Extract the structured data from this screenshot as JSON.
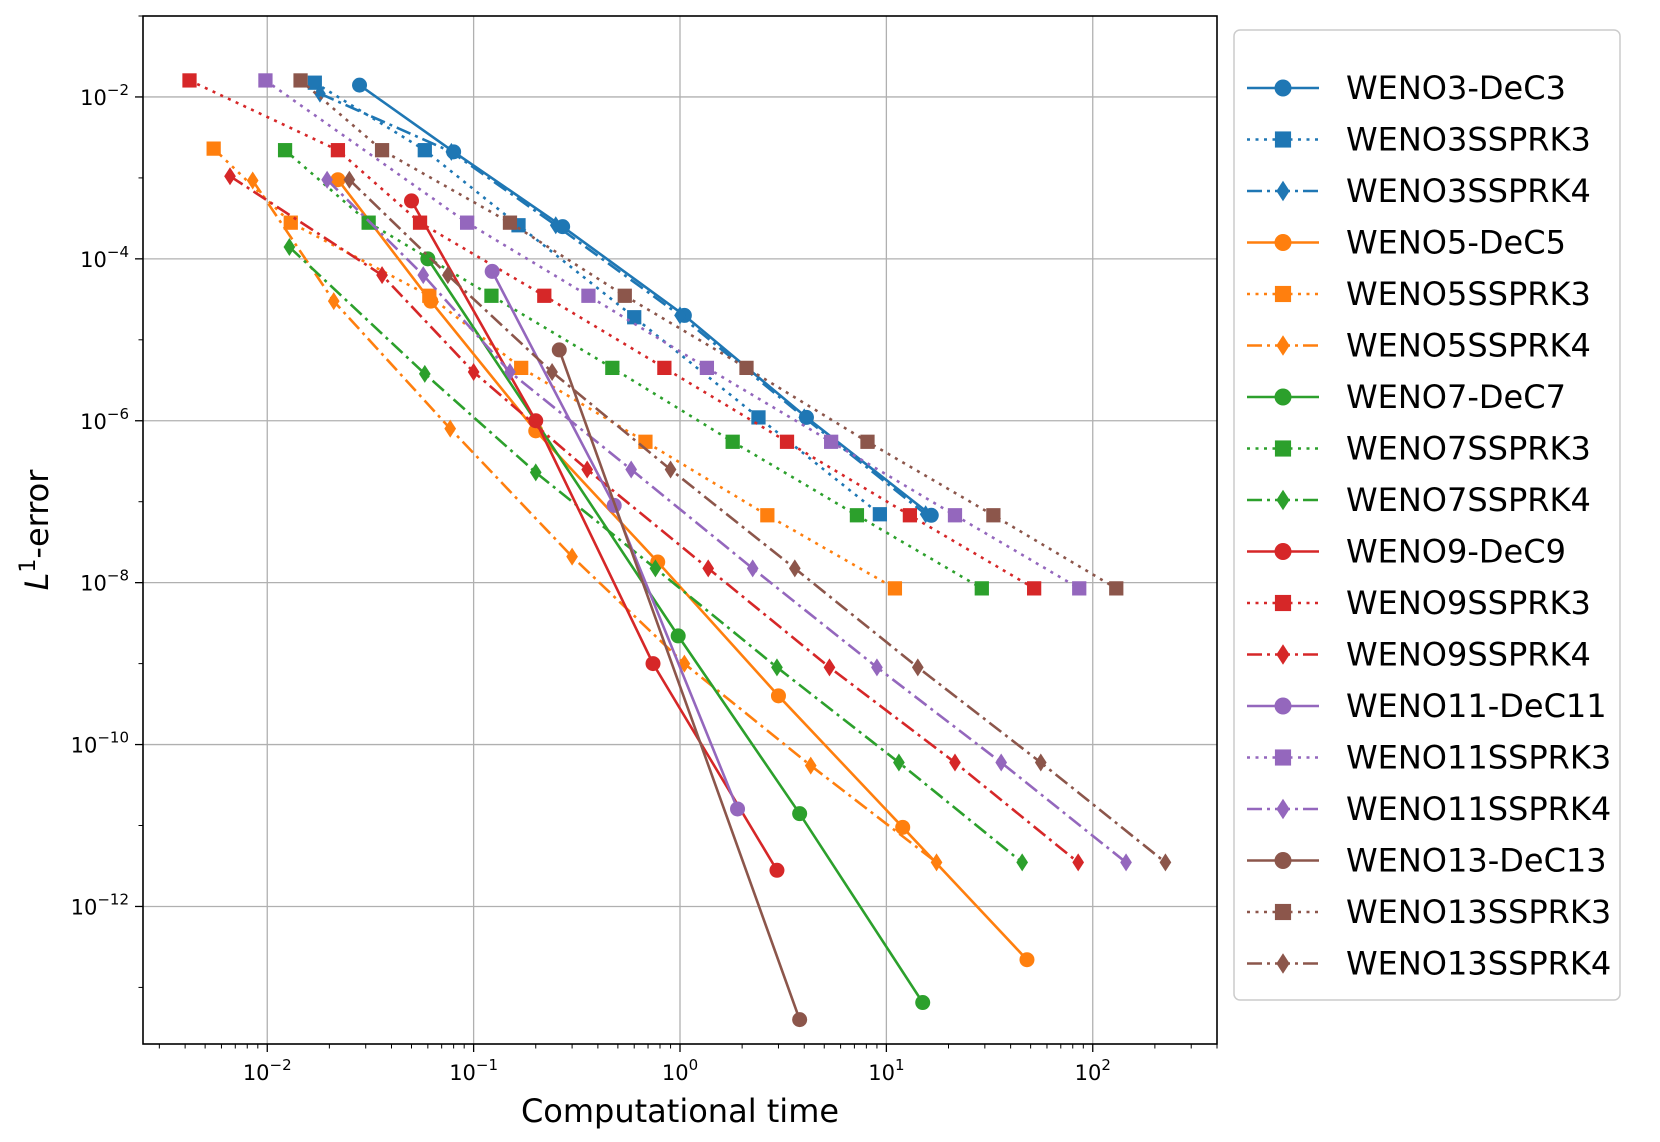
{
  "chart_data": {
    "type": "line",
    "title": "",
    "xlabel": "Computational time",
    "ylabel_main": "L",
    "ylabel_sup": "1",
    "ylabel_rest": "-error",
    "xscale": "log",
    "yscale": "log",
    "xlim": [
      0.0025,
      400
    ],
    "ylim": [
      2e-14,
      0.1
    ],
    "x_ticks": [
      {
        "exp": -2,
        "base": "10",
        "sup": "−2"
      },
      {
        "exp": -1,
        "base": "10",
        "sup": "−1"
      },
      {
        "exp": 0,
        "base": "10",
        "sup": "0"
      },
      {
        "exp": 1,
        "base": "10",
        "sup": "1"
      },
      {
        "exp": 2,
        "base": "10",
        "sup": "2"
      }
    ],
    "y_ticks": [
      {
        "exp": -2,
        "base": "10",
        "sup": "−2"
      },
      {
        "exp": -4,
        "base": "10",
        "sup": "−4"
      },
      {
        "exp": -6,
        "base": "10",
        "sup": "−6"
      },
      {
        "exp": -8,
        "base": "10",
        "sup": "−8"
      },
      {
        "exp": -10,
        "base": "10",
        "sup": "−10"
      },
      {
        "exp": -12,
        "base": "10",
        "sup": "−12"
      }
    ],
    "grid": true,
    "legend_position": "outside-right",
    "series": [
      {
        "name": "WENO3-DeC3",
        "color": "#1f77b4",
        "marker": "circle",
        "dash": "solid",
        "x": [
          0.028,
          0.08,
          0.27,
          1.05,
          4.1,
          16.5
        ],
        "y": [
          0.014,
          0.0021,
          0.00025,
          2e-05,
          1.1e-06,
          6.8e-08
        ]
      },
      {
        "name": "WENO3SSPRK3",
        "color": "#1f77b4",
        "marker": "square",
        "dash": "dotted",
        "x": [
          0.017,
          0.058,
          0.165,
          0.6,
          2.4,
          9.3
        ],
        "y": [
          0.015,
          0.0022,
          0.00026,
          1.9e-05,
          1.1e-06,
          7e-08
        ]
      },
      {
        "name": "WENO3SSPRK4",
        "color": "#1f77b4",
        "marker": "diamond",
        "dash": "dashdot",
        "x": [
          0.018,
          0.078,
          0.25,
          1.0,
          4.0,
          15.5
        ],
        "y": [
          0.011,
          0.0021,
          0.00026,
          2e-05,
          1.1e-06,
          7e-08
        ]
      },
      {
        "name": "WENO5-DeC5",
        "color": "#ff7f0e",
        "marker": "circle",
        "dash": "solid",
        "x": [
          0.022,
          0.062,
          0.2,
          0.78,
          3.0,
          12.0,
          48.0
        ],
        "y": [
          0.00095,
          3e-05,
          7.5e-07,
          1.8e-08,
          4e-10,
          9.5e-12,
          2.2e-13
        ]
      },
      {
        "name": "WENO5SSPRK3",
        "color": "#ff7f0e",
        "marker": "square",
        "dash": "dotted",
        "x": [
          0.0055,
          0.013,
          0.061,
          0.17,
          0.68,
          2.65,
          11.0
        ],
        "y": [
          0.0023,
          0.00028,
          3.5e-05,
          4.5e-06,
          5.5e-07,
          6.8e-08,
          8.5e-09
        ]
      },
      {
        "name": "WENO5SSPRK4",
        "color": "#ff7f0e",
        "marker": "diamond",
        "dash": "dashdot",
        "x": [
          0.0085,
          0.021,
          0.077,
          0.3,
          1.05,
          4.3,
          17.5
        ],
        "y": [
          0.00093,
          3e-05,
          8e-07,
          2.1e-08,
          1e-09,
          5.5e-11,
          3.5e-12
        ]
      },
      {
        "name": "WENO7-DeC7",
        "color": "#2ca02c",
        "marker": "circle",
        "dash": "solid",
        "x": [
          0.06,
          0.98,
          3.8,
          15.0
        ],
        "y": [
          0.0001,
          2.2e-09,
          1.4e-11,
          6.5e-14
        ]
      },
      {
        "name": "WENO7SSPRK3",
        "color": "#2ca02c",
        "marker": "square",
        "dash": "dotted",
        "x": [
          0.0122,
          0.031,
          0.122,
          0.47,
          1.8,
          7.2,
          29.0
        ],
        "y": [
          0.0022,
          0.00028,
          3.5e-05,
          4.5e-06,
          5.5e-07,
          6.8e-08,
          8.5e-09
        ]
      },
      {
        "name": "WENO7SSPRK4",
        "color": "#2ca02c",
        "marker": "diamond",
        "dash": "dashdot",
        "x": [
          0.0128,
          0.058,
          0.2,
          0.76,
          2.95,
          11.5,
          45.5
        ],
        "y": [
          0.00014,
          3.8e-06,
          2.3e-07,
          1.5e-08,
          9e-10,
          6e-11,
          3.5e-12
        ]
      },
      {
        "name": "WENO9-DeC9",
        "color": "#d62728",
        "marker": "circle",
        "dash": "solid",
        "x": [
          0.05,
          0.2,
          0.74,
          2.95
        ],
        "y": [
          0.00052,
          1e-06,
          1e-09,
          2.8e-12
        ]
      },
      {
        "name": "WENO9SSPRK3",
        "color": "#d62728",
        "marker": "square",
        "dash": "dotted",
        "x": [
          0.0042,
          0.022,
          0.055,
          0.22,
          0.84,
          3.3,
          13.0,
          52.0
        ],
        "y": [
          0.016,
          0.0022,
          0.00028,
          3.5e-05,
          4.5e-06,
          5.5e-07,
          6.8e-08,
          8.5e-09
        ]
      },
      {
        "name": "WENO9SSPRK4",
        "color": "#d62728",
        "marker": "diamond",
        "dash": "dashdot",
        "x": [
          0.0066,
          0.036,
          0.1,
          0.355,
          1.37,
          5.3,
          21.5,
          85.0
        ],
        "y": [
          0.00105,
          6.3e-05,
          4e-06,
          2.5e-07,
          1.5e-08,
          9e-10,
          6e-11,
          3.5e-12
        ]
      },
      {
        "name": "WENO11-DeC11",
        "color": "#9467bd",
        "marker": "circle",
        "dash": "solid",
        "x": [
          0.123,
          0.48,
          1.9
        ],
        "y": [
          7e-05,
          9e-08,
          1.6e-11
        ]
      },
      {
        "name": "WENO11SSPRK3",
        "color": "#9467bd",
        "marker": "square",
        "dash": "dotted",
        "x": [
          0.0098,
          0.093,
          0.36,
          1.35,
          5.4,
          21.5,
          86.0
        ],
        "y": [
          0.016,
          0.00028,
          3.5e-05,
          4.5e-06,
          5.5e-07,
          6.8e-08,
          8.5e-09
        ]
      },
      {
        "name": "WENO11SSPRK4",
        "color": "#9467bd",
        "marker": "diamond",
        "dash": "dashdot",
        "x": [
          0.0195,
          0.057,
          0.15,
          0.58,
          2.25,
          9.0,
          36.0,
          145.0
        ],
        "y": [
          0.00095,
          6.3e-05,
          4e-06,
          2.5e-07,
          1.5e-08,
          9e-10,
          6e-11,
          3.5e-12
        ]
      },
      {
        "name": "WENO13-DeC13",
        "color": "#8c564b",
        "marker": "circle",
        "dash": "solid",
        "x": [
          0.26,
          3.8
        ],
        "y": [
          7.5e-06,
          4e-14
        ]
      },
      {
        "name": "WENO13SSPRK3",
        "color": "#8c564b",
        "marker": "square",
        "dash": "dotted",
        "x": [
          0.0145,
          0.036,
          0.15,
          0.54,
          2.1,
          8.1,
          33.0,
          130.0
        ],
        "y": [
          0.016,
          0.0022,
          0.00028,
          3.5e-05,
          4.5e-06,
          5.5e-07,
          6.8e-08,
          8.5e-09
        ]
      },
      {
        "name": "WENO13SSPRK4",
        "color": "#8c564b",
        "marker": "diamond",
        "dash": "dashdot",
        "x": [
          0.025,
          0.075,
          0.24,
          0.9,
          3.6,
          14.2,
          56.0,
          225.0
        ],
        "y": [
          0.00095,
          6.3e-05,
          4e-06,
          2.5e-07,
          1.5e-08,
          9e-10,
          6e-11,
          3.5e-12
        ]
      }
    ]
  }
}
